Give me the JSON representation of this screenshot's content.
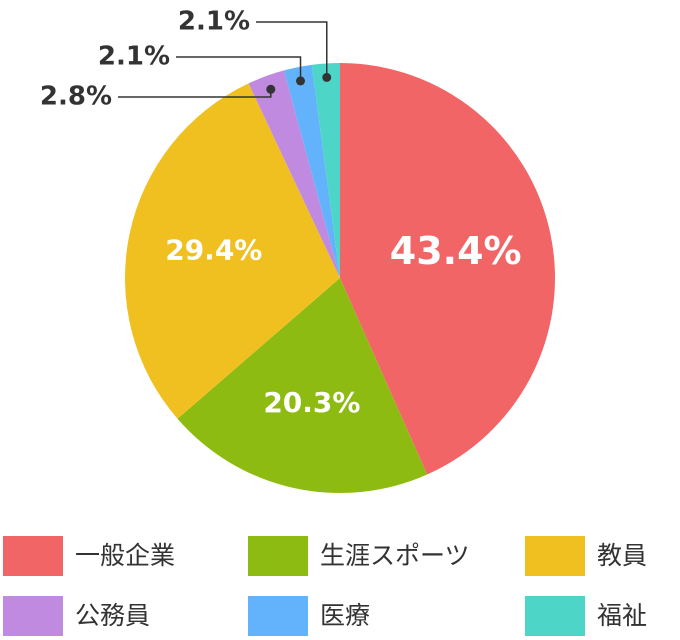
{
  "chart_data": {
    "type": "pie",
    "categories": [
      "一般企業",
      "生涯スポーツ",
      "教員",
      "公務員",
      "医療",
      "福祉"
    ],
    "values": [
      43.4,
      20.3,
      29.4,
      2.8,
      2.1,
      2.1
    ],
    "value_labels": [
      "43.4%",
      "20.3%",
      "29.4%",
      "2.8%",
      "2.1%",
      "2.1%"
    ],
    "colors": [
      "#f26566",
      "#8dbb12",
      "#f0c020",
      "#c08ae0",
      "#62b3fb",
      "#4dd6c8"
    ]
  }
}
